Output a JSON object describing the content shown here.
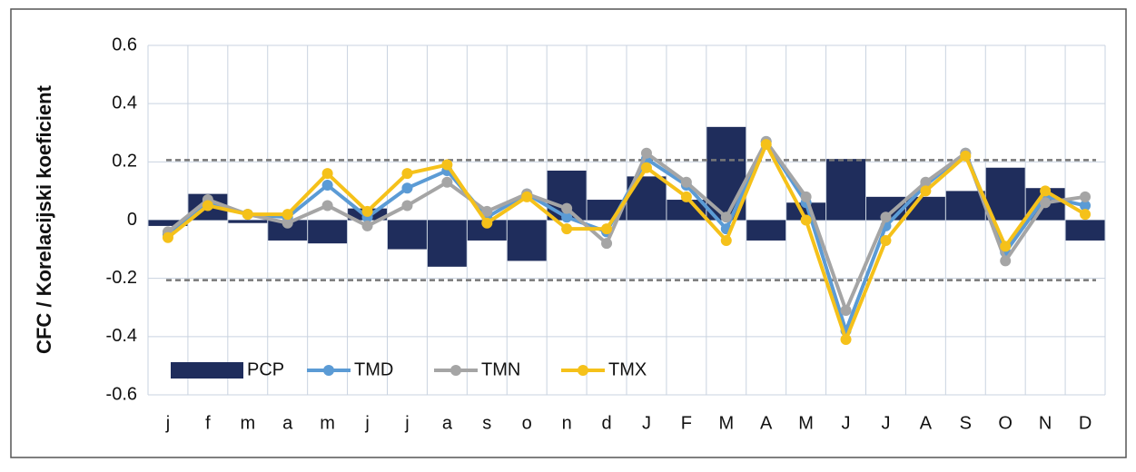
{
  "chart_data": {
    "type": "bar_line",
    "y_label": "CFC / Korelacijski koeficient",
    "categories": [
      "j",
      "f",
      "m",
      "a",
      "m",
      "j",
      "j",
      "a",
      "s",
      "o",
      "n",
      "d",
      "J",
      "F",
      "M",
      "A",
      "M",
      "J",
      "J",
      "A",
      "S",
      "O",
      "N",
      "D"
    ],
    "series": [
      {
        "name": "PCP",
        "type": "bar",
        "color": "#1f2d5c",
        "values": [
          -0.02,
          0.09,
          -0.01,
          -0.07,
          -0.08,
          0.04,
          -0.1,
          -0.16,
          -0.07,
          -0.14,
          0.17,
          0.07,
          0.15,
          0.07,
          0.32,
          -0.07,
          0.06,
          0.21,
          0.08,
          0.08,
          0.1,
          0.18,
          0.11,
          -0.07
        ]
      },
      {
        "name": "TMD",
        "type": "line",
        "color": "#5b9bd5",
        "values": [
          -0.05,
          0.06,
          0.02,
          0.01,
          0.12,
          0.01,
          0.11,
          0.17,
          0.01,
          0.09,
          0.01,
          -0.04,
          0.21,
          0.12,
          -0.03,
          0.27,
          0.06,
          -0.38,
          -0.02,
          0.12,
          0.23,
          -0.11,
          0.08,
          0.05
        ]
      },
      {
        "name": "TMN",
        "type": "line",
        "color": "#a5a5a5",
        "values": [
          -0.04,
          0.07,
          0.02,
          -0.01,
          0.05,
          -0.02,
          0.05,
          0.13,
          0.03,
          0.09,
          0.04,
          -0.08,
          0.23,
          0.13,
          0.01,
          0.27,
          0.08,
          -0.31,
          0.01,
          0.13,
          0.23,
          -0.14,
          0.06,
          0.08
        ]
      },
      {
        "name": "TMX",
        "type": "line",
        "color": "#f5c11a",
        "values": [
          -0.06,
          0.05,
          0.02,
          0.02,
          0.16,
          0.03,
          0.16,
          0.19,
          -0.01,
          0.08,
          -0.03,
          -0.03,
          0.18,
          0.08,
          -0.07,
          0.26,
          0.0,
          -0.41,
          -0.07,
          0.1,
          0.22,
          -0.09,
          0.1,
          0.02
        ]
      }
    ],
    "reference_lines": [
      0.206,
      -0.206
    ],
    "ylim": [
      -0.6,
      0.6
    ],
    "yticks": [
      0.6,
      0.4,
      0.2,
      0,
      -0.2,
      -0.4,
      -0.6
    ],
    "grid": true,
    "legend": "lower-left"
  }
}
